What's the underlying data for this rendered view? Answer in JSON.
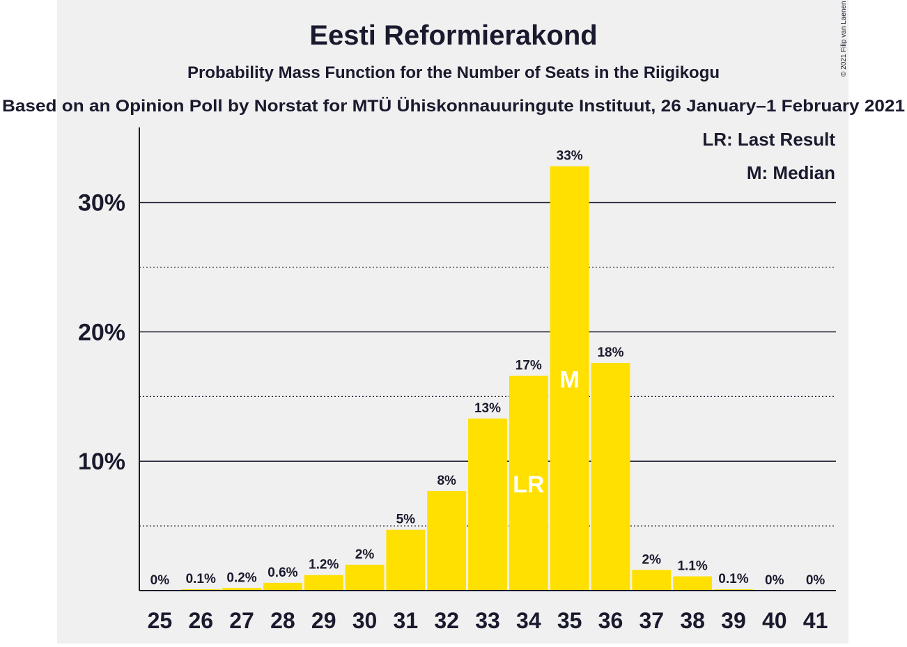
{
  "chart_data": {
    "type": "bar",
    "title": "Eesti Reformierakond",
    "subtitle": "Probability Mass Function for the Number of Seats in the Riigikogu",
    "caption": "Based on an Opinion Poll by Norstat for MTÜ Ühiskonnauuringute Instituut, 26 January–1 February 2021",
    "copyright": "© 2021 Filip van Laenen",
    "categories": [
      "25",
      "26",
      "27",
      "28",
      "29",
      "30",
      "31",
      "32",
      "33",
      "34",
      "35",
      "36",
      "37",
      "38",
      "39",
      "40",
      "41"
    ],
    "values": [
      0,
      0.1,
      0.2,
      0.6,
      1.2,
      2,
      4.7,
      7.7,
      13.3,
      16.6,
      32.8,
      17.6,
      1.6,
      1.1,
      0.1,
      0,
      0
    ],
    "value_labels": [
      "0%",
      "0.1%",
      "0.2%",
      "0.6%",
      "1.2%",
      "2%",
      "5%",
      "8%",
      "13%",
      "17%",
      "33%",
      "18%",
      "2%",
      "1.1%",
      "0.1%",
      "0%",
      "0%"
    ],
    "color": "#ffe000",
    "ylim": [
      0,
      35.8
    ],
    "yticks": [
      {
        "value": 10,
        "label": "10%"
      },
      {
        "value": 20,
        "label": "20%"
      },
      {
        "value": 30,
        "label": "30%"
      }
    ],
    "yminor": [
      5,
      15,
      25
    ],
    "grid": true,
    "markers": [
      {
        "text": "LR",
        "category": "34"
      },
      {
        "text": "M",
        "category": "35"
      }
    ],
    "legend": [
      "LR: Last Result",
      "M: Median"
    ]
  }
}
